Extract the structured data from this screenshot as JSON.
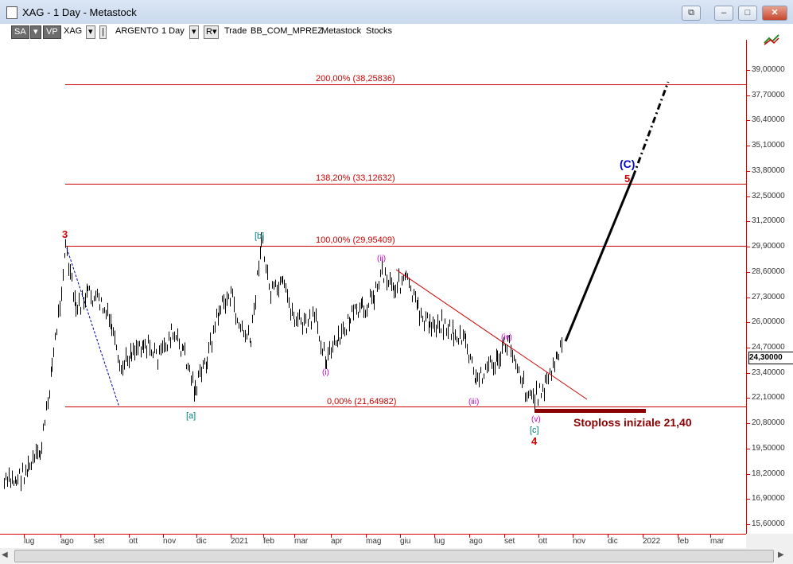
{
  "window": {
    "title": "XAG - 1 Day - Metastock",
    "buttons": {
      "restore_extra": "⧉",
      "minimize": "–",
      "maximize": "□",
      "close": "✕"
    }
  },
  "toolbar": {
    "sa": "SA",
    "vp": "VP",
    "symbol": "XAG",
    "security_name": "ARGENTO",
    "periodicity": "1 Day",
    "r_button": "R",
    "trade": "Trade",
    "chart_template": "BB_COM_MPREZ",
    "source": "Metastock",
    "type": "Stocks"
  },
  "chart": {
    "colors": {
      "grid": "#cc0000",
      "bars": "#000000",
      "fib": "#cc0000",
      "wave_count": "#cc00cc",
      "abc": "#007f7f",
      "major": "#cc0000",
      "target": "#0000cc"
    },
    "price_ticks": [
      "39,00000",
      "37,70000",
      "36,40000",
      "35,10000",
      "33,80000",
      "32,50000",
      "31,20000",
      "29,90000",
      "28,60000",
      "27,30000",
      "26,00000",
      "24,70000",
      "23,40000",
      "22,10000",
      "20,80000",
      "19,50000",
      "18,20000",
      "16,90000",
      "15,60000"
    ],
    "last_price": "24,30000",
    "time_ticks": [
      "lug",
      "ago",
      "set",
      "ott",
      "nov",
      "dic",
      "2021",
      "feb",
      "mar",
      "apr",
      "mag",
      "giu",
      "lug",
      "ago",
      "set",
      "ott",
      "nov",
      "dic",
      "2022",
      "feb",
      "mar"
    ],
    "fib_levels": [
      {
        "label": "200,00% (38,25836)",
        "price": 38.25836
      },
      {
        "label": "138,20% (33,12632)",
        "price": 33.12632
      },
      {
        "label": "100,00% (29,95409)",
        "price": 29.95409
      },
      {
        "label": "0,00% (21,64982)",
        "price": 21.64982
      }
    ],
    "wave_labels": {
      "w3": "3",
      "b_bracket": "[b]",
      "a_bracket": "[a]",
      "wave_i": "(i)",
      "wave_ii": "(ii)",
      "wave_iii": "(iii)",
      "wave_iv": "(iv)",
      "wave_v": "(v)",
      "c_bracket": "[c]",
      "w4": "4",
      "C_paren": "(C)",
      "w5": "5"
    },
    "stoploss_text": "Stoploss iniziale 21,40"
  }
}
